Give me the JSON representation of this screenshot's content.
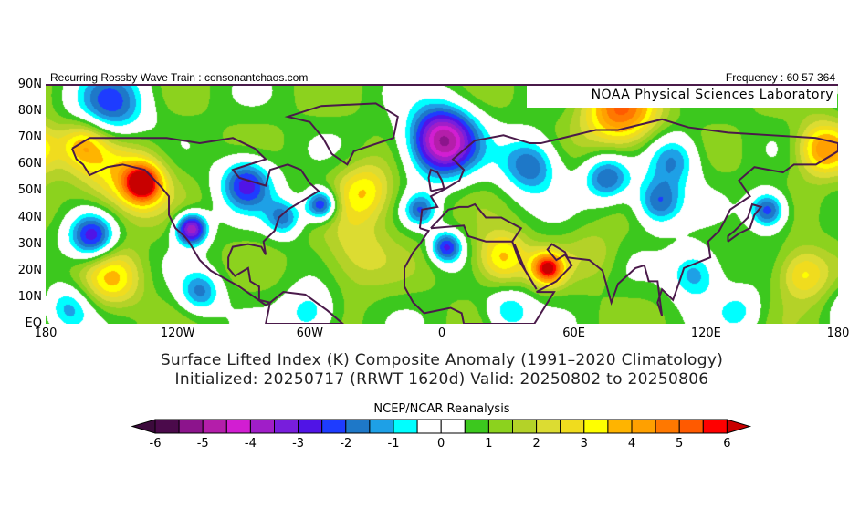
{
  "header": {
    "left": "Recurring Rossby Wave Train : consonantchaos.com",
    "right": "Frequency : 60 57 364",
    "lab": "NOAA Physical Sciences Laboratory"
  },
  "axes": {
    "lat_labels": [
      "90N",
      "80N",
      "70N",
      "60N",
      "50N",
      "40N",
      "30N",
      "20N",
      "10N",
      "EQ"
    ],
    "lon_labels": [
      "180",
      "120W",
      "60W",
      "0",
      "60E",
      "120E",
      "180"
    ]
  },
  "titles": {
    "line1": "Surface Lifted Index (K) Composite Anomaly (1991–2020 Climatology)",
    "line2": "Initialized: 20250717 (RRWT 1620d) Valid: 20250802 to 20250806"
  },
  "colorbar": {
    "title": "NCEP/NCAR Reanalysis",
    "tick_labels": [
      "-6",
      "-5",
      "-4",
      "-3",
      "-2",
      "-1",
      "0",
      "1",
      "2",
      "3",
      "4",
      "5",
      "6"
    ],
    "range": [
      -6,
      6
    ],
    "step": 0.5,
    "colors": [
      "#4b0a4b",
      "#8c148c",
      "#b41eaa",
      "#d21ed2",
      "#a01ec8",
      "#781edc",
      "#5014e6",
      "#1e3cff",
      "#1e78c8",
      "#1ea0e6",
      "#00ffff",
      "#ffffff",
      "#ffffff",
      "#3cc81e",
      "#8cd21e",
      "#b4d228",
      "#dcdc32",
      "#f0dc1e",
      "#ffff00",
      "#ffb400",
      "#ffa000",
      "#ff7800",
      "#ff5a00",
      "#ff0000"
    ],
    "under_color": "#3c0a3c",
    "over_color": "#c80000"
  },
  "map_data": {
    "lon_range": [
      -180,
      180
    ],
    "lat_range": [
      0,
      90
    ],
    "background_value": 0.9,
    "anomaly_centers": [
      {
        "lon": -150,
        "lat": 82,
        "value": -3,
        "radius": 14
      },
      {
        "lon": 0,
        "lat": 69,
        "value": -6,
        "radius": 13
      },
      {
        "lon": 40,
        "lat": 60,
        "value": -3,
        "radius": 11
      },
      {
        "lon": 75,
        "lat": 55,
        "value": -3,
        "radius": 9
      },
      {
        "lon": 105,
        "lat": 62,
        "value": -2.5,
        "radius": 10
      },
      {
        "lon": -136,
        "lat": 53,
        "value": 5,
        "radius": 7
      },
      {
        "lon": -145,
        "lat": 55,
        "value": 2.5,
        "radius": 16
      },
      {
        "lon": -163,
        "lat": 68,
        "value": 2.5,
        "radius": 9
      },
      {
        "lon": -159,
        "lat": 33,
        "value": -4,
        "radius": 9
      },
      {
        "lon": -150,
        "lat": 17,
        "value": 2.5,
        "radius": 11
      },
      {
        "lon": -114,
        "lat": 36,
        "value": -5,
        "radius": 6
      },
      {
        "lon": -89,
        "lat": 53,
        "value": -3.5,
        "radius": 10
      },
      {
        "lon": -72,
        "lat": 40,
        "value": -2.5,
        "radius": 7
      },
      {
        "lon": -55,
        "lat": 45,
        "value": -4,
        "radius": 6
      },
      {
        "lon": -35,
        "lat": 50,
        "value": 2.5,
        "radius": 11
      },
      {
        "lon": -40,
        "lat": 27,
        "value": 1.5,
        "radius": 14
      },
      {
        "lon": -110,
        "lat": 12,
        "value": -2.5,
        "radius": 8
      },
      {
        "lon": -60,
        "lat": 4,
        "value": -2,
        "radius": 10
      },
      {
        "lon": -170,
        "lat": 6,
        "value": -2,
        "radius": 9
      },
      {
        "lon": 81,
        "lat": 80,
        "value": 4,
        "radius": 14
      },
      {
        "lon": 173,
        "lat": 66,
        "value": 3.5,
        "radius": 10
      },
      {
        "lon": 98,
        "lat": 46,
        "value": -3,
        "radius": 9
      },
      {
        "lon": 148,
        "lat": 43,
        "value": -3.5,
        "radius": 7
      },
      {
        "lon": 2,
        "lat": 29,
        "value": -3.5,
        "radius": 6
      },
      {
        "lon": 48,
        "lat": 21,
        "value": 5,
        "radius": 6
      },
      {
        "lon": 27,
        "lat": 25,
        "value": 3,
        "radius": 10
      },
      {
        "lon": 69,
        "lat": 26,
        "value": 1,
        "radius": 10
      },
      {
        "lon": 115,
        "lat": 19,
        "value": -2.5,
        "radius": 10
      },
      {
        "lon": 164,
        "lat": 19,
        "value": 2.5,
        "radius": 10
      },
      {
        "lon": -10,
        "lat": 43,
        "value": -2.5,
        "radius": 6
      },
      {
        "lon": 30,
        "lat": 5,
        "value": -2,
        "radius": 9
      },
      {
        "lon": 135,
        "lat": 5,
        "value": -1.5,
        "radius": 9
      }
    ]
  }
}
